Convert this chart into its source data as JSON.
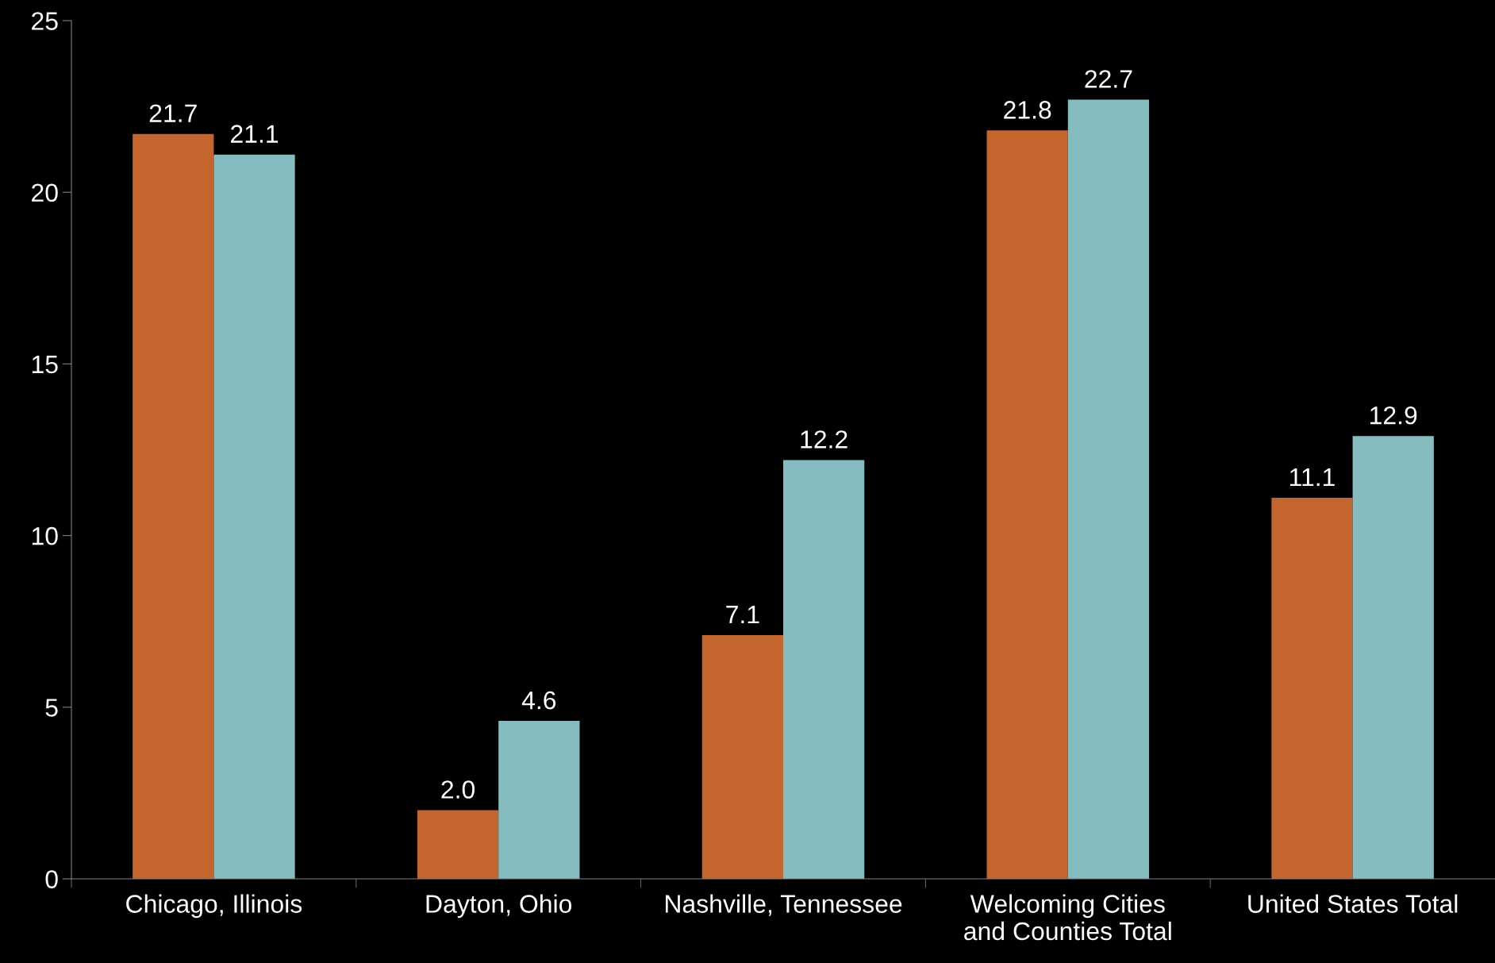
{
  "chart_data": {
    "type": "bar",
    "categories": [
      "Chicago, Illinois",
      "Dayton, Ohio",
      "Nashville, Tennessee",
      "Welcoming Cities\nand Counties Total",
      "United States Total"
    ],
    "series": [
      {
        "color": "#c5652e",
        "values": [
          21.7,
          2.0,
          7.1,
          21.8,
          11.1
        ],
        "value_labels": [
          "21.7",
          "2.0",
          "7.1",
          "21.8",
          "11.1"
        ]
      },
      {
        "color": "#85bcc0",
        "values": [
          21.1,
          4.6,
          12.2,
          22.7,
          12.9
        ],
        "value_labels": [
          "21.1",
          "4.6",
          "12.2",
          "22.7",
          "12.9"
        ]
      }
    ],
    "ylim": [
      0,
      25
    ],
    "yticks": [
      0,
      5,
      10,
      15,
      20,
      25
    ],
    "grid": false,
    "legend": false
  }
}
